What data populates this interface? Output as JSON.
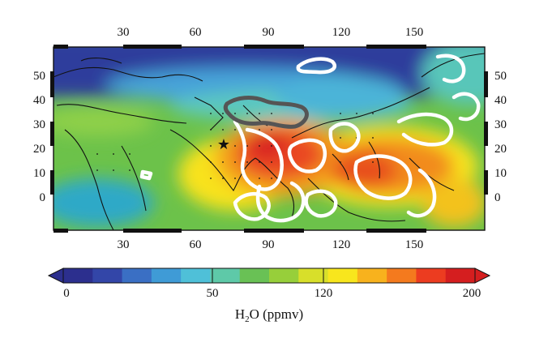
{
  "map": {
    "variable": "H2O",
    "units": "ppmv",
    "lon_ticks": [
      "30",
      "60",
      "90",
      "120",
      "150"
    ],
    "lat_ticks": [
      "50",
      "40",
      "30",
      "20",
      "10",
      "0"
    ],
    "color_scale": {
      "min": 0,
      "max": 200,
      "tick_values": [
        "0",
        "50",
        "120",
        "200"
      ],
      "colors": [
        "#2c2f8e",
        "#3346a8",
        "#3a6fc4",
        "#3f9bd6",
        "#4fc0d8",
        "#5ec9a8",
        "#69c155",
        "#97cf3a",
        "#d8df2a",
        "#f8e61d",
        "#f8b21d",
        "#f47a1e",
        "#ec3c20",
        "#d51e1f"
      ]
    },
    "title_text": {
      "prefix": "H",
      "subscript": "2",
      "suffix": "O (ppmv)"
    },
    "markers": [
      {
        "name": "star-marker",
        "symbol": "★"
      }
    ]
  }
}
